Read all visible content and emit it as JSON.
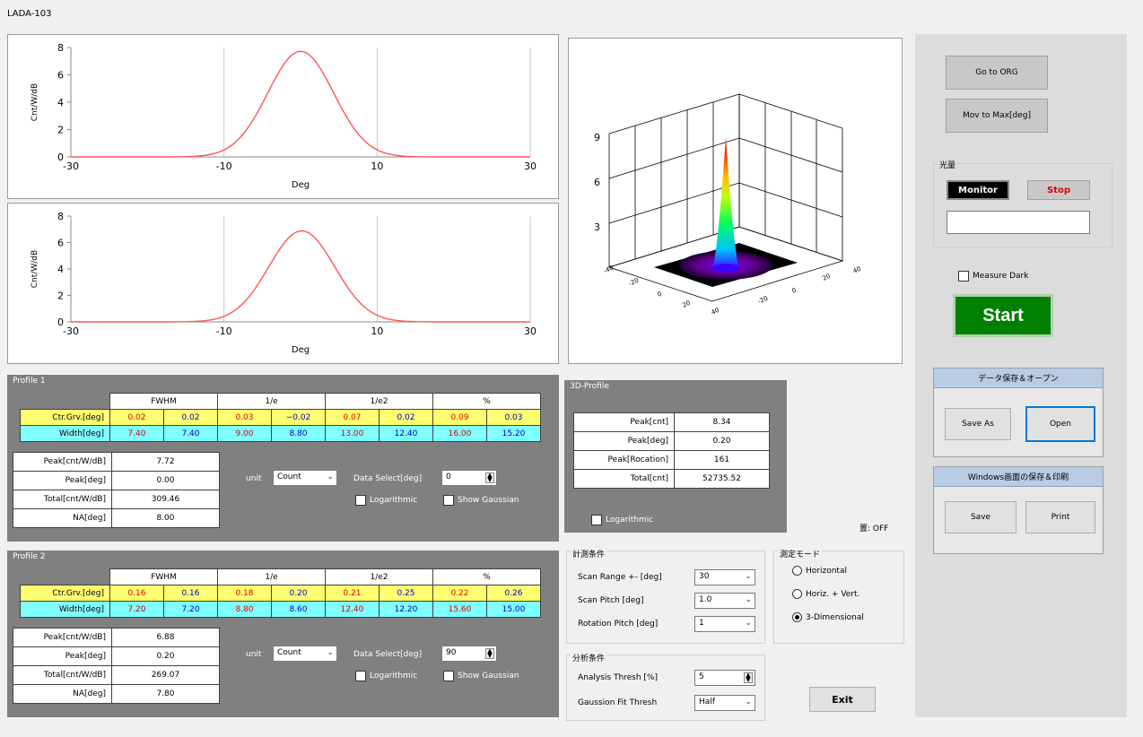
{
  "app": {
    "title": "LADA-103"
  },
  "colors": {
    "curve": "#ff5555",
    "start_bg": "#008000",
    "monitor_bg": "#000000",
    "stop_text": "#e00000",
    "yellow_row": "#ffff70",
    "cyan_row": "#80ffff",
    "panel_gray": "#808080"
  },
  "plots": [
    {
      "ylabel": "Cnt/W/dB",
      "xlabel": "Deg",
      "xticks": [
        "-30",
        "-10",
        "10",
        "30"
      ],
      "yticks": [
        "0",
        "2",
        "4",
        "6",
        "8"
      ],
      "peak": 7.72,
      "center": 0.02
    },
    {
      "ylabel": "Cnt/W/dB",
      "xlabel": "Deg",
      "xticks": [
        "-30",
        "-10",
        "10",
        "30"
      ],
      "yticks": [
        "0",
        "2",
        "4",
        "6",
        "8"
      ],
      "peak": 6.88,
      "center": 0.16
    }
  ],
  "plot3d": {
    "zticks": [
      "9",
      "6",
      "3"
    ]
  },
  "profiles": [
    {
      "label": "Profile 1",
      "headers": [
        "FWHM",
        "1/e",
        "1/e2",
        "%"
      ],
      "ctr_label": "Ctr.Grv.[deg]",
      "ctr": [
        "0.02",
        "0.02",
        "0.03",
        "−0.02",
        "0.07",
        "0.02",
        "0.09",
        "0.03"
      ],
      "width_label": "Width[deg]",
      "width": [
        "7.40",
        "7.40",
        "9.00",
        "8.80",
        "13.00",
        "12.40",
        "16.00",
        "15.20"
      ],
      "rows": [
        {
          "label": "Peak[cnt/W/dB]",
          "value": "7.72"
        },
        {
          "label": "Peak[deg]",
          "value": "0.00"
        },
        {
          "label": "Total[cnt/W/dB]",
          "value": "309.46"
        },
        {
          "label": "NA[deg]",
          "value": "8.00"
        }
      ],
      "unit_label": "unit",
      "unit_value": "Count",
      "data_select_label": "Data Select[deg]",
      "data_select_value": "0",
      "log_label": "Logarithmic",
      "gauss_label": "Show Gaussian"
    },
    {
      "label": "Profile 2",
      "headers": [
        "FWHM",
        "1/e",
        "1/e2",
        "%"
      ],
      "ctr_label": "Ctr.Grv.[deg]",
      "ctr": [
        "0.16",
        "0.16",
        "0.18",
        "0.20",
        "0.21",
        "0.25",
        "0.22",
        "0.26"
      ],
      "width_label": "Width[deg]",
      "width": [
        "7.20",
        "7.20",
        "8.80",
        "8.60",
        "12.40",
        "12.20",
        "15.60",
        "15.00"
      ],
      "rows": [
        {
          "label": "Peak[cnt/W/dB]",
          "value": "6.88"
        },
        {
          "label": "Peak[deg]",
          "value": "0.20"
        },
        {
          "label": "Total[cnt/W/dB]",
          "value": "269.07"
        },
        {
          "label": "NA[deg]",
          "value": "7.80"
        }
      ],
      "unit_label": "unit",
      "unit_value": "Count",
      "data_select_label": "Data Select[deg]",
      "data_select_value": "90",
      "log_label": "Logarithmic",
      "gauss_label": "Show Gaussian"
    }
  ],
  "profile3d": {
    "label": "3D-Profile",
    "rows": [
      {
        "label": "Peak[cnt]",
        "value": "8.34"
      },
      {
        "label": "Peak[deg]",
        "value": "0.20"
      },
      {
        "label": "Peak[Rocation]",
        "value": "161"
      },
      {
        "label": "Total[cnt]",
        "value": "52735.52"
      }
    ],
    "log_label": "Logarithmic"
  },
  "status": {
    "text": "置: OFF"
  },
  "measure": {
    "title": "計測条件",
    "scan_range_label": "Scan Range +- [deg]",
    "scan_range_value": "30",
    "scan_pitch_label": "Scan Pitch [deg]",
    "scan_pitch_value": "1.0",
    "rotation_pitch_label": "Rotation Pitch [deg]",
    "rotation_pitch_value": "1"
  },
  "mode": {
    "title": "測定モード",
    "options": [
      "Horizontal",
      "Horiz. + Vert.",
      "3-Dimensional"
    ],
    "selected": 2
  },
  "analysis": {
    "title": "分析条件",
    "thresh_label": "Analysis Thresh [%]",
    "thresh_value": "5",
    "fit_label": "Gaussion Fit Thresh",
    "fit_value": "Half"
  },
  "exit_label": "Exit",
  "right": {
    "go_org": "Go to ORG",
    "mov_max": "Mov to Max[deg]",
    "light_title": "光量",
    "monitor": "Monitor",
    "stop": "Stop",
    "measure_dark": "Measure Dark",
    "start": "Start",
    "data_section": "データ保存＆オープン",
    "save_as": "Save As",
    "open": "Open",
    "win_section": "Windows画面の保存＆印刷",
    "save": "Save",
    "print": "Print"
  }
}
